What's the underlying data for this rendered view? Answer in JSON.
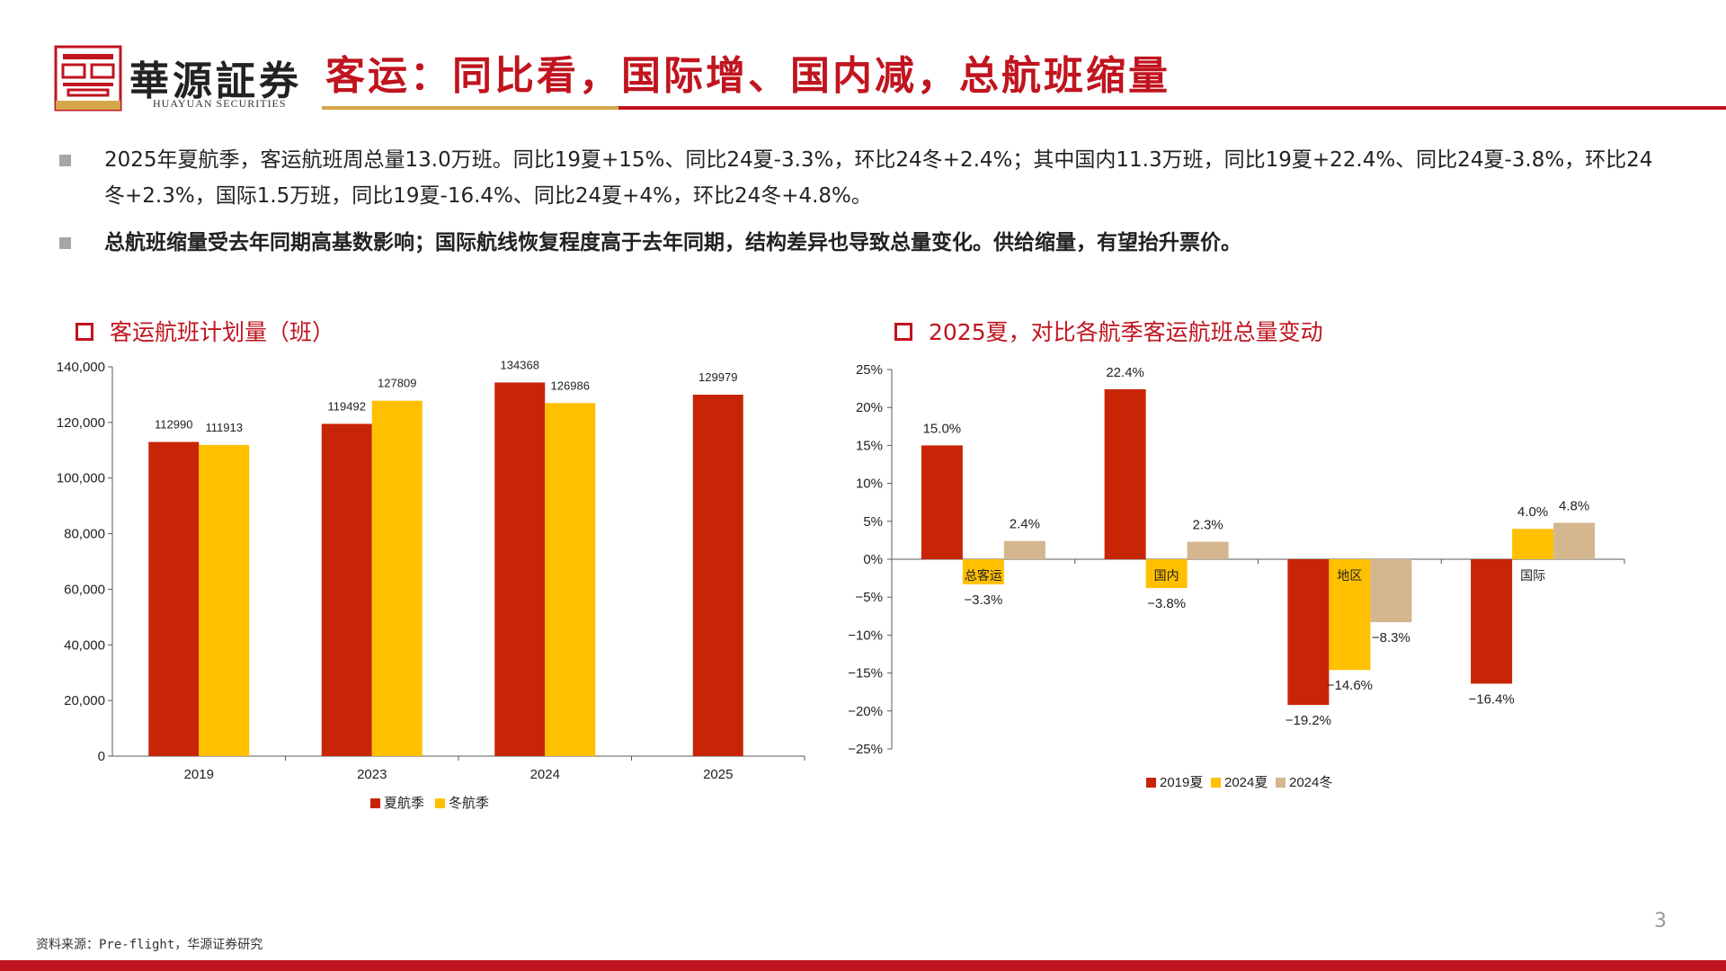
{
  "header": {
    "logo_cn": "華源証券",
    "logo_en": "HUAYUAN SECURITIES",
    "title": "客运：同比看，国际增、国内减，总航班缩量"
  },
  "bullets": [
    "2025年夏航季，客运航班周总量13.0万班。同比19夏+15%、同比24夏-3.3%，环比24冬+2.4%；其中国内11.3万班，同比19夏+22.4%、同比24夏-3.8%，环比24冬+2.3%，国际1.5万班，同比19夏-16.4%、同比24夏+4%，环比24冬+4.8%。",
    "总航班缩量受去年同期高基数影响；国际航线恢复程度高于去年同期，结构差异也导致总量变化。供给缩量，有望抬升票价。"
  ],
  "chart1_title": "客运航班计划量（班）",
  "chart2_title": "2025夏，对比各航季客运航班总量变动",
  "footer": {
    "source": "资料来源：Pre-flight，华源证券研究",
    "page": "3"
  },
  "colors": {
    "brand_red": "#c0141f",
    "gold": "#d6a64a",
    "series_red": "#c82506",
    "series_yellow": "#ffc000",
    "series_tan": "#d4b68f"
  },
  "chart_data": [
    {
      "type": "bar",
      "title": "客运航班计划量（班）",
      "categories": [
        "2019",
        "2023",
        "2024",
        "2025"
      ],
      "series": [
        {
          "name": "夏航季",
          "values": [
            112990,
            119492,
            134368,
            129979
          ],
          "color": "#c82506"
        },
        {
          "name": "冬航季",
          "values": [
            111913,
            127809,
            126986,
            null
          ],
          "color": "#ffc000"
        }
      ],
      "ylim": [
        0,
        140000
      ],
      "yticks": [
        "0",
        "20,000",
        "40,000",
        "60,000",
        "80,000",
        "100,000",
        "120,000",
        "140,000"
      ],
      "ytick_values": [
        0,
        20000,
        40000,
        60000,
        80000,
        100000,
        120000,
        140000
      ],
      "legend": "bottom"
    },
    {
      "type": "bar",
      "categories": [
        "总客运",
        "国内",
        "地区",
        "国际"
      ],
      "series": [
        {
          "name": "2019夏",
          "values": [
            15.0,
            22.4,
            -19.2,
            -16.4
          ],
          "labels": [
            "15.0%",
            "22.4%",
            "−19.2%",
            "−16.4%"
          ],
          "color": "#c82506"
        },
        {
          "name": "2024夏",
          "values": [
            -3.3,
            -3.8,
            -14.6,
            4.0
          ],
          "labels": [
            "−3.3%",
            "−3.8%",
            "−14.6%",
            "4.0%"
          ],
          "color": "#ffc000"
        },
        {
          "name": "2024冬",
          "values": [
            2.4,
            2.3,
            -8.3,
            4.8
          ],
          "labels": [
            "2.4%",
            "2.3%",
            "−8.3%",
            "4.8%"
          ],
          "color": "#d4b68f"
        }
      ],
      "ylim": [
        -25,
        25
      ],
      "yticks": [
        "−25%",
        "−20%",
        "−15%",
        "−10%",
        "−5%",
        "0%",
        "5%",
        "10%",
        "15%",
        "20%",
        "25%"
      ],
      "ytick_values": [
        -25,
        -20,
        -15,
        -10,
        -5,
        0,
        5,
        10,
        15,
        20,
        25
      ],
      "legend": "bottom"
    }
  ]
}
